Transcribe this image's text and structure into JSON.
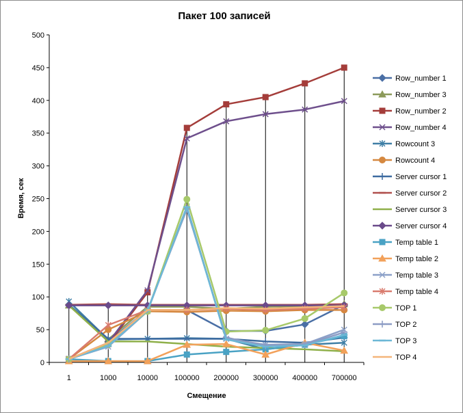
{
  "chart_data": {
    "type": "line",
    "title": "Пакет 100 записей",
    "xlabel": "Смещение",
    "ylabel": "Время, сек",
    "categories": [
      "1",
      "1000",
      "10000",
      "100000",
      "200000",
      "300000",
      "400000",
      "700000"
    ],
    "ylim": [
      0,
      500
    ],
    "yticks": [
      0,
      50,
      100,
      150,
      200,
      250,
      300,
      350,
      400,
      450,
      500
    ],
    "grid": "vertical drop lines at each category",
    "legend_position": "right",
    "series": [
      {
        "name": "Row_number 1",
        "color": "#4a6fa5",
        "marker": "diamond",
        "values": [
          88,
          32,
          80,
          80,
          48,
          48,
          58,
          88
        ]
      },
      {
        "name": "Row_number 3",
        "color": "#8c9a5a",
        "marker": "triangle",
        "values": [
          87,
          35,
          85,
          85,
          82,
          85,
          86,
          89
        ]
      },
      {
        "name": "Row_number 2",
        "color": "#a43d3a",
        "marker": "square",
        "values": [
          5,
          28,
          107,
          358,
          394,
          405,
          426,
          450
        ]
      },
      {
        "name": "Row_number 4",
        "color": "#6e4f8c",
        "marker": "x",
        "values": [
          5,
          30,
          110,
          342,
          368,
          379,
          386,
          399
        ]
      },
      {
        "name": "Rowcount 3",
        "color": "#3f7fa6",
        "marker": "asterisk",
        "values": [
          93,
          35,
          36,
          37,
          36,
          20,
          27,
          30
        ]
      },
      {
        "name": "Rowcount 4",
        "color": "#d58840",
        "marker": "circle",
        "values": [
          5,
          50,
          78,
          77,
          79,
          78,
          80,
          80
        ]
      },
      {
        "name": "Server cursor 1",
        "color": "#3d6ba0",
        "marker": "plus",
        "values": [
          88,
          36,
          36,
          36,
          36,
          32,
          30,
          38
        ]
      },
      {
        "name": "Server cursor 2",
        "color": "#b0504d",
        "marker": "dash",
        "values": [
          88,
          89,
          88,
          88,
          88,
          88,
          88,
          89
        ]
      },
      {
        "name": "Server cursor 3",
        "color": "#8fb04a",
        "marker": "line",
        "values": [
          87,
          32,
          32,
          28,
          24,
          22,
          20,
          17
        ]
      },
      {
        "name": "Server cursor 4",
        "color": "#6a4a8a",
        "marker": "diamond",
        "values": [
          87,
          87,
          87,
          87,
          87,
          87,
          87,
          87
        ]
      },
      {
        "name": "Temp table 1",
        "color": "#4aa2c4",
        "marker": "square",
        "values": [
          5,
          2,
          2,
          12,
          16,
          20,
          27,
          40
        ]
      },
      {
        "name": "Temp table 2",
        "color": "#f2a15a",
        "marker": "triangle",
        "values": [
          2,
          2,
          2,
          27,
          28,
          12,
          30,
          18
        ]
      },
      {
        "name": "Temp table 3",
        "color": "#8ba0c8",
        "marker": "x",
        "values": [
          5,
          24,
          78,
          238,
          36,
          27,
          28,
          50
        ]
      },
      {
        "name": "Temp table 4",
        "color": "#d97b6e",
        "marker": "asterisk",
        "values": [
          5,
          57,
          80,
          80,
          82,
          80,
          82,
          84
        ]
      },
      {
        "name": "TOP 1",
        "color": "#a7c96a",
        "marker": "circle",
        "values": [
          5,
          27,
          78,
          249,
          47,
          49,
          67,
          106
        ]
      },
      {
        "name": "TOP 2",
        "color": "#8c9bc4",
        "marker": "plus",
        "values": [
          5,
          25,
          80,
          234,
          38,
          25,
          27,
          46
        ]
      },
      {
        "name": "TOP 3",
        "color": "#6db8d6",
        "marker": "dash",
        "values": [
          5,
          25,
          79,
          237,
          35,
          24,
          26,
          42
        ]
      },
      {
        "name": "TOP 4",
        "color": "#f4b57a",
        "marker": "line",
        "values": [
          5,
          30,
          80,
          80,
          83,
          82,
          84,
          86
        ]
      }
    ]
  }
}
